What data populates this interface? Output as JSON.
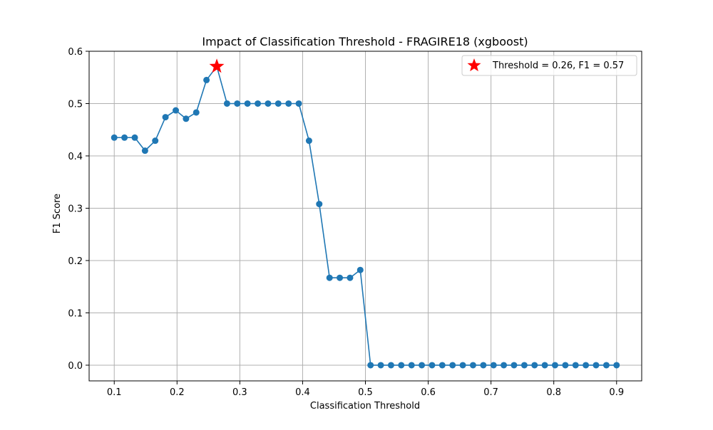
{
  "chart_data": {
    "type": "line",
    "title": "Impact of Classification Threshold - FRAGIRE18 (xgboost)",
    "xlabel": "Classification Threshold",
    "ylabel": "F1 Score",
    "xlim": [
      0.06,
      0.94
    ],
    "ylim": [
      -0.03,
      0.6
    ],
    "xticks": [
      0.1,
      0.2,
      0.3,
      0.4,
      0.5,
      0.6,
      0.7,
      0.8,
      0.9
    ],
    "xtick_labels": [
      "0.1",
      "0.2",
      "0.3",
      "0.4",
      "0.5",
      "0.6",
      "0.7",
      "0.8",
      "0.9"
    ],
    "yticks": [
      0.0,
      0.1,
      0.2,
      0.3,
      0.4,
      0.5,
      0.6
    ],
    "ytick_labels": [
      "0.0",
      "0.1",
      "0.2",
      "0.3",
      "0.4",
      "0.5",
      "0.6"
    ],
    "grid": true,
    "legend_position": "top-right",
    "series": [
      {
        "color": "#1f77b4",
        "x": [
          0.1,
          0.1163,
          0.1327,
          0.149,
          0.1653,
          0.1816,
          0.198,
          0.2143,
          0.2306,
          0.2469,
          0.2633,
          0.2796,
          0.2959,
          0.3122,
          0.3286,
          0.3449,
          0.3612,
          0.3776,
          0.3939,
          0.4102,
          0.4265,
          0.4429,
          0.4592,
          0.4755,
          0.4918,
          0.5082,
          0.5245,
          0.5408,
          0.5571,
          0.5735,
          0.5898,
          0.6061,
          0.6224,
          0.6388,
          0.6551,
          0.6714,
          0.6878,
          0.7041,
          0.7204,
          0.7367,
          0.7531,
          0.7694,
          0.7857,
          0.802,
          0.8184,
          0.8347,
          0.851,
          0.8673,
          0.8837,
          0.9
        ],
        "y": [
          0.435,
          0.435,
          0.435,
          0.41,
          0.429,
          0.474,
          0.487,
          0.471,
          0.483,
          0.545,
          0.571,
          0.5,
          0.5,
          0.5,
          0.5,
          0.5,
          0.5,
          0.5,
          0.5,
          0.429,
          0.308,
          0.167,
          0.167,
          0.167,
          0.182,
          0.0,
          0.0,
          0.0,
          0.0,
          0.0,
          0.0,
          0.0,
          0.0,
          0.0,
          0.0,
          0.0,
          0.0,
          0.0,
          0.0,
          0.0,
          0.0,
          0.0,
          0.0,
          0.0,
          0.0,
          0.0,
          0.0,
          0.0,
          0.0,
          0.0
        ]
      }
    ],
    "highlight": {
      "name": "Threshold = 0.26, F1 = 0.57",
      "x": 0.2633,
      "y": 0.571,
      "marker": "star",
      "color": "#ff0000"
    },
    "colors": {
      "line": "#1f77b4",
      "highlight": "#ff0000",
      "grid": "#b0b0b0",
      "axis": "#000000"
    }
  }
}
